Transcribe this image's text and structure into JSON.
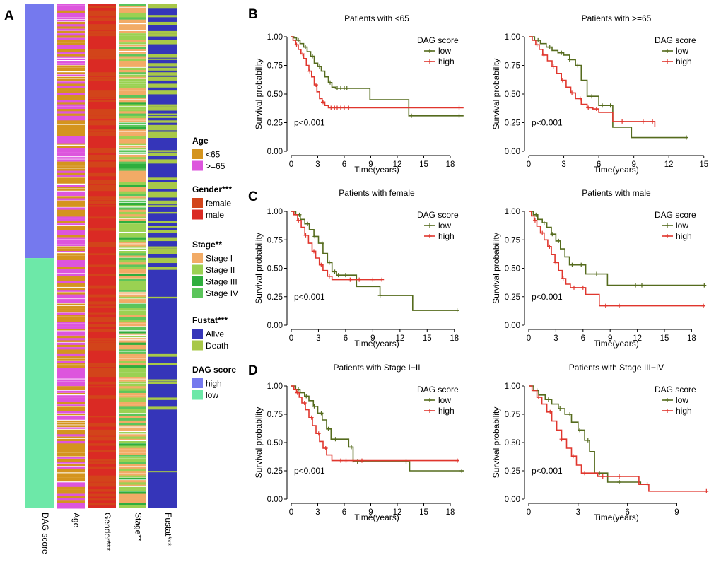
{
  "panel_labels": [
    "A",
    "B",
    "C",
    "D"
  ],
  "heatmap": {
    "columns": [
      {
        "key": "dag",
        "label": "DAG score"
      },
      {
        "key": "age",
        "label": "Age"
      },
      {
        "key": "gender",
        "label": "Gender***"
      },
      {
        "key": "stage",
        "label": "Stage**"
      },
      {
        "key": "fustat",
        "label": "Fustat***"
      }
    ],
    "split": {
      "high_fraction": 0.505
    },
    "legend": [
      {
        "key": "age",
        "title": "Age",
        "items": [
          {
            "label": "<65",
            "color": "#D4941E"
          },
          {
            "label": ">=65",
            "color": "#DD55DD"
          }
        ]
      },
      {
        "key": "gender",
        "title": "Gender***",
        "items": [
          {
            "label": "female",
            "color": "#D2441A"
          },
          {
            "label": "male",
            "color": "#DA2A24"
          }
        ]
      },
      {
        "key": "stage",
        "title": "Stage**",
        "items": [
          {
            "label": "Stage I",
            "color": "#F2AB66"
          },
          {
            "label": "Stage II",
            "color": "#9AD152"
          },
          {
            "label": "Stage III",
            "color": "#2FAE3E"
          },
          {
            "label": "Stage IV",
            "color": "#5BC55B"
          }
        ]
      },
      {
        "key": "fustat",
        "title": "Fustat***",
        "items": [
          {
            "label": "Alive",
            "color": "#3535B9"
          },
          {
            "label": "Death",
            "color": "#A8C848"
          }
        ]
      },
      {
        "key": "dag",
        "title": "DAG score",
        "items": [
          {
            "label": "high",
            "color": "#7579EE"
          },
          {
            "label": "low",
            "color": "#6DE8A8"
          }
        ]
      }
    ]
  },
  "chart_data": [
    {
      "type": "line",
      "panel": "B",
      "title": "Patients with <65",
      "xlabel": "Time(years)",
      "ylabel": "Survival probability",
      "xticks": [
        0,
        3,
        6,
        9,
        12,
        15,
        18
      ],
      "xlim": [
        0,
        20
      ],
      "ylim": [
        0,
        1
      ],
      "yticks": [
        "0.00",
        "0.25",
        "0.50",
        "0.75",
        "1.00"
      ],
      "legend_title": "DAG score",
      "pvalue": "p<0.001",
      "series": [
        {
          "name": "low",
          "color": "#556B1D",
          "x": [
            0,
            0.3,
            0.6,
            1.0,
            1.4,
            1.8,
            2.2,
            2.6,
            3.0,
            3.4,
            3.8,
            4.2,
            4.6,
            5.0,
            6.5,
            8.9,
            13.3,
            19.5
          ],
          "y": [
            1.0,
            0.99,
            0.97,
            0.94,
            0.91,
            0.87,
            0.83,
            0.77,
            0.74,
            0.7,
            0.65,
            0.6,
            0.56,
            0.55,
            0.55,
            0.45,
            0.31,
            0.31
          ],
          "censor_x": [
            0.8,
            1.6,
            2.4,
            3.2,
            4.4,
            5.2,
            5.6,
            6.0,
            6.3,
            13.6,
            19.0
          ]
        },
        {
          "name": "high",
          "color": "#E0362D",
          "x": [
            0,
            0.2,
            0.5,
            0.8,
            1.1,
            1.4,
            1.7,
            2.0,
            2.3,
            2.6,
            2.9,
            3.2,
            3.5,
            3.8,
            4.2,
            19.5
          ],
          "y": [
            1.0,
            0.97,
            0.93,
            0.89,
            0.85,
            0.81,
            0.75,
            0.7,
            0.65,
            0.58,
            0.52,
            0.46,
            0.43,
            0.4,
            0.38,
            0.38
          ],
          "censor_x": [
            0.6,
            1.3,
            2.1,
            2.8,
            3.6,
            4.5,
            4.9,
            5.2,
            5.6,
            6.0,
            6.5,
            19.0
          ]
        }
      ]
    },
    {
      "type": "line",
      "panel": "B",
      "title": "Patients with >=65",
      "xlabel": "Time(years)",
      "ylabel": "Survival probability",
      "xticks": [
        0,
        3,
        6,
        9,
        12,
        15
      ],
      "xlim": [
        0,
        15.5
      ],
      "ylim": [
        0,
        1
      ],
      "yticks": [
        "0.00",
        "0.25",
        "0.50",
        "0.75",
        "1.00"
      ],
      "legend_title": "DAG score",
      "pvalue": "p<0.001",
      "series": [
        {
          "name": "low",
          "color": "#556B1D",
          "x": [
            0,
            0.5,
            1.0,
            1.5,
            2.0,
            2.5,
            3.0,
            3.5,
            4.0,
            4.5,
            5.0,
            6.0,
            7.2,
            8.8,
            13.6
          ],
          "y": [
            1.0,
            0.97,
            0.94,
            0.91,
            0.88,
            0.86,
            0.84,
            0.8,
            0.75,
            0.62,
            0.48,
            0.4,
            0.21,
            0.12,
            0.12
          ],
          "censor_x": [
            0.8,
            1.8,
            2.8,
            3.5,
            4.2,
            5.4,
            6.3,
            7.0,
            13.5
          ]
        },
        {
          "name": "high",
          "color": "#E0362D",
          "x": [
            0,
            0.3,
            0.6,
            0.9,
            1.2,
            1.6,
            2.0,
            2.4,
            2.8,
            3.2,
            3.6,
            4.0,
            4.5,
            5.0,
            5.5,
            6.0,
            7.2,
            10.8
          ],
          "y": [
            1.0,
            0.97,
            0.93,
            0.89,
            0.84,
            0.79,
            0.74,
            0.68,
            0.62,
            0.56,
            0.51,
            0.46,
            0.41,
            0.38,
            0.37,
            0.34,
            0.26,
            0.21
          ],
          "censor_x": [
            0.7,
            1.3,
            2.1,
            2.9,
            3.7,
            4.4,
            5.1,
            5.8,
            8.0,
            9.8,
            10.6
          ]
        }
      ]
    },
    {
      "type": "line",
      "panel": "C",
      "title": "Patients with female",
      "xlabel": "Time(years)",
      "ylabel": "Survival probability",
      "xticks": [
        0,
        3,
        6,
        9,
        12,
        15,
        18
      ],
      "xlim": [
        0,
        19.5
      ],
      "ylim": [
        0,
        1
      ],
      "yticks": [
        "0.00",
        "0.25",
        "0.50",
        "0.75",
        "1.00"
      ],
      "legend_title": "DAG score",
      "pvalue": "p<0.001",
      "series": [
        {
          "name": "low",
          "color": "#556B1D",
          "x": [
            0,
            0.5,
            1.0,
            1.5,
            2.0,
            2.5,
            3.0,
            3.5,
            4.0,
            4.5,
            5.0,
            7.2,
            9.8,
            13.4,
            18.5
          ],
          "y": [
            1.0,
            0.97,
            0.93,
            0.89,
            0.84,
            0.78,
            0.72,
            0.63,
            0.55,
            0.47,
            0.44,
            0.34,
            0.26,
            0.13,
            0.13
          ],
          "censor_x": [
            0.9,
            1.8,
            2.6,
            3.4,
            4.2,
            4.8,
            5.2,
            6.0,
            9.8,
            18.3
          ]
        },
        {
          "name": "high",
          "color": "#E0362D",
          "x": [
            0,
            0.3,
            0.7,
            1.1,
            1.5,
            1.9,
            2.3,
            2.7,
            3.1,
            3.5,
            4.0,
            4.5,
            7.5,
            10.0
          ],
          "y": [
            1.0,
            0.97,
            0.92,
            0.86,
            0.79,
            0.72,
            0.65,
            0.59,
            0.53,
            0.48,
            0.43,
            0.4,
            0.4,
            0.4
          ],
          "censor_x": [
            0.8,
            1.6,
            2.5,
            3.3,
            4.2,
            6.5,
            7.5,
            9.0,
            10.0
          ]
        }
      ]
    },
    {
      "type": "line",
      "panel": "C",
      "title": "Patients with male",
      "xlabel": "Time(years)",
      "ylabel": "Survival probability",
      "xticks": [
        0,
        3,
        6,
        9,
        12,
        15,
        18
      ],
      "xlim": [
        0,
        20
      ],
      "ylim": [
        0,
        1
      ],
      "yticks": [
        "0.00",
        "0.25",
        "0.50",
        "0.75",
        "1.00"
      ],
      "legend_title": "DAG score",
      "pvalue": "p<0.001",
      "series": [
        {
          "name": "low",
          "color": "#556B1D",
          "x": [
            0,
            0.5,
            1.0,
            1.5,
            2.0,
            2.5,
            3.0,
            3.5,
            4.0,
            4.5,
            6.3,
            8.7,
            19.5
          ],
          "y": [
            1.0,
            0.97,
            0.93,
            0.9,
            0.86,
            0.8,
            0.74,
            0.67,
            0.6,
            0.53,
            0.45,
            0.35,
            0.35
          ],
          "censor_x": [
            0.8,
            1.7,
            2.6,
            3.3,
            4.8,
            5.8,
            7.5,
            11.8,
            12.5,
            19.4
          ]
        },
        {
          "name": "high",
          "color": "#E0362D",
          "x": [
            0,
            0.3,
            0.6,
            0.9,
            1.3,
            1.7,
            2.1,
            2.5,
            2.9,
            3.3,
            3.7,
            4.1,
            4.6,
            6.3,
            7.8,
            19.5
          ],
          "y": [
            1.0,
            0.96,
            0.92,
            0.87,
            0.81,
            0.75,
            0.69,
            0.62,
            0.55,
            0.48,
            0.41,
            0.36,
            0.33,
            0.27,
            0.17,
            0.17
          ],
          "censor_x": [
            0.7,
            1.5,
            2.3,
            3.0,
            3.8,
            5.0,
            6.0,
            8.5,
            10.0,
            19.3
          ]
        }
      ]
    },
    {
      "type": "line",
      "panel": "D",
      "title": "Patients with Stage I−II",
      "xlabel": "Time(years)",
      "ylabel": "Survival probability",
      "xticks": [
        0,
        3,
        6,
        9,
        12,
        15,
        18
      ],
      "xlim": [
        0,
        20
      ],
      "ylim": [
        0,
        1
      ],
      "yticks": [
        "0.00",
        "0.25",
        "0.50",
        "0.75",
        "1.00"
      ],
      "legend_title": "DAG score",
      "pvalue": "p<0.001",
      "series": [
        {
          "name": "low",
          "color": "#556B1D",
          "x": [
            0,
            0.5,
            1.0,
            1.5,
            2.0,
            2.5,
            3.0,
            3.5,
            4.0,
            4.5,
            6.5,
            7.0,
            13.4,
            19.5
          ],
          "y": [
            1.0,
            0.97,
            0.94,
            0.91,
            0.87,
            0.82,
            0.76,
            0.7,
            0.62,
            0.53,
            0.46,
            0.33,
            0.25,
            0.25
          ],
          "censor_x": [
            0.8,
            1.7,
            2.6,
            3.4,
            4.2,
            5.0,
            6.8,
            7.5,
            13.0,
            19.3
          ]
        },
        {
          "name": "high",
          "color": "#E0362D",
          "x": [
            0,
            0.3,
            0.6,
            0.9,
            1.2,
            1.6,
            2.0,
            2.4,
            2.8,
            3.2,
            3.6,
            4.0,
            4.6,
            19.0
          ],
          "y": [
            1.0,
            0.97,
            0.94,
            0.9,
            0.85,
            0.79,
            0.72,
            0.65,
            0.58,
            0.51,
            0.45,
            0.39,
            0.34,
            0.34
          ],
          "censor_x": [
            0.7,
            1.5,
            2.3,
            3.1,
            3.9,
            5.6,
            6.2,
            7.0,
            8.0,
            18.8
          ]
        }
      ]
    },
    {
      "type": "line",
      "panel": "D",
      "title": "Patients with Stage III−IV",
      "xlabel": "Time(years)",
      "ylabel": "Survival probability",
      "xticks": [
        0,
        3,
        6,
        9
      ],
      "xlim": [
        0,
        11
      ],
      "ylim": [
        0,
        1
      ],
      "yticks": [
        "0.00",
        "0.25",
        "0.50",
        "0.75",
        "1.00"
      ],
      "legend_title": "DAG score",
      "pvalue": "p<0.001",
      "series": [
        {
          "name": "low",
          "color": "#556B1D",
          "x": [
            0,
            0.3,
            0.6,
            1.0,
            1.4,
            1.8,
            2.2,
            2.6,
            3.0,
            3.4,
            3.7,
            4.0,
            4.8,
            6.8,
            7.3
          ],
          "y": [
            1.0,
            0.96,
            0.92,
            0.88,
            0.84,
            0.8,
            0.75,
            0.68,
            0.61,
            0.52,
            0.42,
            0.23,
            0.15,
            0.13,
            0.13
          ],
          "censor_x": [
            0.5,
            1.2,
            1.9,
            2.5,
            3.1,
            3.6,
            4.3,
            5.5,
            7.2
          ]
        },
        {
          "name": "high",
          "color": "#E0362D",
          "x": [
            0,
            0.2,
            0.5,
            0.8,
            1.1,
            1.4,
            1.7,
            2.0,
            2.3,
            2.6,
            2.9,
            3.2,
            4.2,
            6.7,
            7.3,
            10.9
          ],
          "y": [
            1.0,
            0.96,
            0.9,
            0.84,
            0.77,
            0.69,
            0.61,
            0.53,
            0.45,
            0.38,
            0.3,
            0.23,
            0.2,
            0.13,
            0.07,
            0.07
          ],
          "censor_x": [
            0.6,
            1.3,
            2.0,
            2.7,
            3.4,
            4.5,
            5.5,
            10.8
          ]
        }
      ]
    }
  ]
}
